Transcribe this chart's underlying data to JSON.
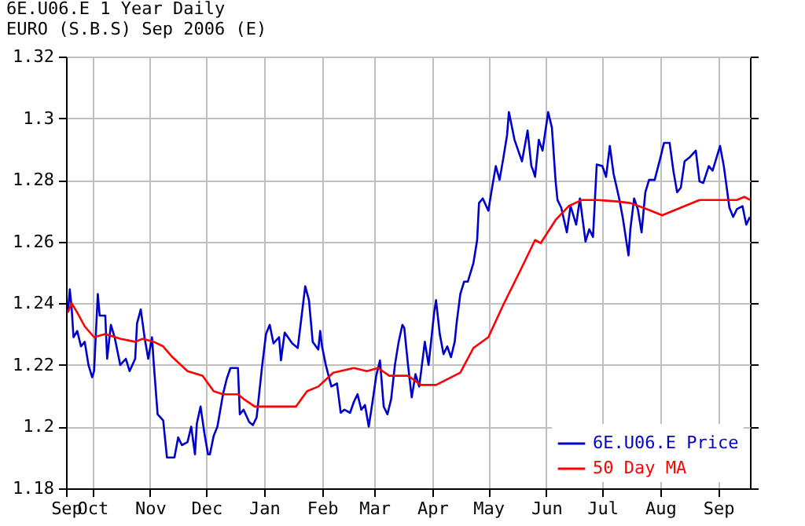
{
  "chart_data": {
    "type": "line",
    "title": "6E.U06.E 1 Year Daily",
    "subtitle": "EURO (S.B.S) Sep 2006 (E)",
    "xlim": [
      "2005-09-17",
      "2006-09-18"
    ],
    "xticks": [
      {
        "value": "2005-09-17",
        "label": "Sep"
      },
      {
        "value": "2005-10-01",
        "label": "Oct"
      },
      {
        "value": "2005-11-01",
        "label": "Nov"
      },
      {
        "value": "2005-12-01",
        "label": "Dec"
      },
      {
        "value": "2006-01-01",
        "label": "Jan"
      },
      {
        "value": "2006-02-01",
        "label": "Feb"
      },
      {
        "value": "2006-03-01",
        "label": "Mar"
      },
      {
        "value": "2006-04-01",
        "label": "Apr"
      },
      {
        "value": "2006-05-01",
        "label": "May"
      },
      {
        "value": "2006-06-01",
        "label": "Jun"
      },
      {
        "value": "2006-07-01",
        "label": "Jul"
      },
      {
        "value": "2006-08-01",
        "label": "Aug"
      },
      {
        "value": "2006-09-01",
        "label": "Sep"
      }
    ],
    "ylim": [
      1.18,
      1.32
    ],
    "yticks": [
      1.18,
      1.2,
      1.22,
      1.24,
      1.26,
      1.28,
      1.3,
      1.32
    ],
    "grid": true,
    "legend": "bottom right",
    "marker": "none",
    "line_style": "solid",
    "series": [
      {
        "name": "6E.U06.E Price",
        "color": "#0000cc",
        "x": [
          "2005-09-18",
          "2005-09-19",
          "2005-09-20",
          "2005-09-21",
          "2005-09-23",
          "2005-09-25",
          "2005-09-27",
          "2005-09-29",
          "2005-10-01",
          "2005-10-02",
          "2005-10-04",
          "2005-10-05",
          "2005-10-08",
          "2005-10-09",
          "2005-10-11",
          "2005-10-13",
          "2005-10-16",
          "2005-10-19",
          "2005-10-21",
          "2005-10-24",
          "2005-10-25",
          "2005-10-27",
          "2005-10-29",
          "2005-10-31",
          "2005-11-02",
          "2005-11-03",
          "2005-11-05",
          "2005-11-08",
          "2005-11-10",
          "2005-11-14",
          "2005-11-16",
          "2005-11-18",
          "2005-11-21",
          "2005-11-23",
          "2005-11-25",
          "2005-11-26",
          "2005-11-28",
          "2005-11-30",
          "2005-12-02",
          "2005-12-03",
          "2005-12-05",
          "2005-12-07",
          "2005-12-10",
          "2005-12-12",
          "2005-12-14",
          "2005-12-18",
          "2005-12-19",
          "2005-12-21",
          "2005-12-24",
          "2005-12-26",
          "2005-12-28",
          "2005-12-31",
          "2006-01-02",
          "2006-01-04",
          "2006-01-06",
          "2006-01-09",
          "2006-01-10",
          "2006-01-12",
          "2006-01-16",
          "2006-01-19",
          "2006-01-23",
          "2006-01-25",
          "2006-01-27",
          "2006-01-30",
          "2006-01-31",
          "2006-02-01",
          "2006-02-03",
          "2006-02-06",
          "2006-02-09",
          "2006-02-11",
          "2006-02-13",
          "2006-02-16",
          "2006-02-18",
          "2006-02-20",
          "2006-02-22",
          "2006-02-24",
          "2006-02-26",
          "2006-02-28",
          "2006-03-02",
          "2006-03-04",
          "2006-03-06",
          "2006-03-08",
          "2006-03-10",
          "2006-03-12",
          "2006-03-14",
          "2006-03-16",
          "2006-03-17",
          "2006-03-19",
          "2006-03-21",
          "2006-03-23",
          "2006-03-25",
          "2006-03-28",
          "2006-03-30",
          "2006-04-02",
          "2006-04-03",
          "2006-04-05",
          "2006-04-07",
          "2006-04-09",
          "2006-04-11",
          "2006-04-13",
          "2006-04-14",
          "2006-04-16",
          "2006-04-18",
          "2006-04-20",
          "2006-04-23",
          "2006-04-25",
          "2006-04-26",
          "2006-04-28",
          "2006-05-01",
          "2006-05-03",
          "2006-05-05",
          "2006-05-07",
          "2006-05-09",
          "2006-05-11",
          "2006-05-12",
          "2006-05-15",
          "2006-05-17",
          "2006-05-19",
          "2006-05-22",
          "2006-05-24",
          "2006-05-25",
          "2006-05-26",
          "2006-05-28",
          "2006-05-30",
          "2006-06-02",
          "2006-06-04",
          "2006-06-06",
          "2006-06-07",
          "2006-06-09",
          "2006-06-12",
          "2006-06-14",
          "2006-06-17",
          "2006-06-19",
          "2006-06-22",
          "2006-06-24",
          "2006-06-26",
          "2006-06-28",
          "2006-07-01",
          "2006-07-03",
          "2006-07-05",
          "2006-07-07",
          "2006-07-10",
          "2006-07-12",
          "2006-07-15",
          "2006-07-16",
          "2006-07-18",
          "2006-07-20",
          "2006-07-22",
          "2006-07-24",
          "2006-07-26",
          "2006-07-29",
          "2006-08-01",
          "2006-08-03",
          "2006-08-06",
          "2006-08-08",
          "2006-08-10",
          "2006-08-12",
          "2006-08-14",
          "2006-08-17",
          "2006-08-20",
          "2006-08-22",
          "2006-08-24",
          "2006-08-27",
          "2006-08-29",
          "2006-09-02",
          "2006-09-04",
          "2006-09-07",
          "2006-09-09",
          "2006-09-11",
          "2006-09-14",
          "2006-09-16",
          "2006-09-18"
        ],
        "values": [
          1.237,
          1.2445,
          1.2385,
          1.229,
          1.231,
          1.226,
          1.2275,
          1.22,
          1.216,
          1.218,
          1.243,
          1.236,
          1.236,
          1.222,
          1.233,
          1.229,
          1.22,
          1.222,
          1.218,
          1.222,
          1.2335,
          1.238,
          1.229,
          1.222,
          1.229,
          1.22,
          1.204,
          1.202,
          1.19,
          1.19,
          1.1965,
          1.194,
          1.195,
          1.2,
          1.191,
          1.201,
          1.2065,
          1.198,
          1.191,
          1.191,
          1.197,
          1.2,
          1.2105,
          1.2155,
          1.219,
          1.219,
          1.204,
          1.2055,
          1.2015,
          1.2005,
          1.203,
          1.22,
          1.23,
          1.233,
          1.227,
          1.229,
          1.2215,
          1.2305,
          1.227,
          1.2255,
          1.2455,
          1.241,
          1.2275,
          1.225,
          1.231,
          1.226,
          1.22,
          1.213,
          1.214,
          1.2045,
          1.2055,
          1.2045,
          1.208,
          1.2105,
          1.2055,
          1.207,
          1.2,
          1.208,
          1.2165,
          1.2215,
          1.2065,
          1.204,
          1.209,
          1.22,
          1.2275,
          1.233,
          1.232,
          1.22,
          1.2095,
          1.217,
          1.213,
          1.2275,
          1.22,
          1.237,
          1.241,
          1.23,
          1.2235,
          1.226,
          1.2225,
          1.2275,
          1.2335,
          1.243,
          1.247,
          1.247,
          1.253,
          1.2605,
          1.2725,
          1.274,
          1.27,
          1.2775,
          1.2845,
          1.28,
          1.287,
          1.2945,
          1.302,
          1.293,
          1.2895,
          1.286,
          1.296,
          1.2845,
          1.283,
          1.281,
          1.293,
          1.2895,
          1.302,
          1.297,
          1.2795,
          1.2735,
          1.271,
          1.263,
          1.2715,
          1.2655,
          1.274,
          1.26,
          1.264,
          1.2615,
          1.285,
          1.2845,
          1.281,
          1.291,
          1.282,
          1.274,
          1.2675,
          1.2555,
          1.264,
          1.274,
          1.2705,
          1.263,
          1.276,
          1.28,
          1.28,
          1.287,
          1.292,
          1.292,
          1.283,
          1.276,
          1.2775,
          1.286,
          1.2875,
          1.2895,
          1.2795,
          1.279,
          1.2845,
          1.283,
          1.291,
          1.2845,
          1.271,
          1.268,
          1.2705,
          1.2715,
          1.2655,
          1.268
        ]
      },
      {
        "name": "50 Day MA",
        "color": "#ff0000",
        "x": [
          "2005-09-18",
          "2005-09-20",
          "2005-09-23",
          "2005-09-27",
          "2005-10-02",
          "2005-10-08",
          "2005-10-16",
          "2005-10-24",
          "2005-10-28",
          "2005-11-03",
          "2005-11-08",
          "2005-11-13",
          "2005-11-21",
          "2005-11-29",
          "2005-12-05",
          "2005-12-10",
          "2005-12-18",
          "2005-12-21",
          "2005-12-27",
          "2006-01-03",
          "2006-01-18",
          "2006-01-24",
          "2006-01-30",
          "2006-02-07",
          "2006-02-18",
          "2006-02-25",
          "2006-03-03",
          "2006-03-09",
          "2006-03-19",
          "2006-03-26",
          "2006-04-03",
          "2006-04-16",
          "2006-04-23",
          "2006-05-01",
          "2006-05-09",
          "2006-05-18",
          "2006-05-26",
          "2006-05-29",
          "2006-06-06",
          "2006-06-13",
          "2006-06-20",
          "2006-06-28",
          "2006-07-09",
          "2006-07-16",
          "2006-07-25",
          "2006-08-02",
          "2006-08-12",
          "2006-08-22",
          "2006-09-02",
          "2006-09-11",
          "2006-09-15",
          "2006-09-18"
        ],
        "values": [
          1.237,
          1.24,
          1.237,
          1.2325,
          1.229,
          1.23,
          1.2285,
          1.2275,
          1.2285,
          1.2275,
          1.226,
          1.2225,
          1.218,
          1.2165,
          1.2115,
          1.2105,
          1.2105,
          1.209,
          1.2065,
          1.2065,
          1.2065,
          1.2115,
          1.213,
          1.2175,
          1.219,
          1.218,
          1.219,
          1.2165,
          1.2165,
          1.2135,
          1.2135,
          1.2175,
          1.2255,
          1.229,
          1.2395,
          1.2505,
          1.2605,
          1.2595,
          1.267,
          1.2715,
          1.2735,
          1.2735,
          1.273,
          1.2725,
          1.2705,
          1.2685,
          1.271,
          1.2735,
          1.2735,
          1.2735,
          1.2745,
          1.2735
        ]
      }
    ]
  }
}
